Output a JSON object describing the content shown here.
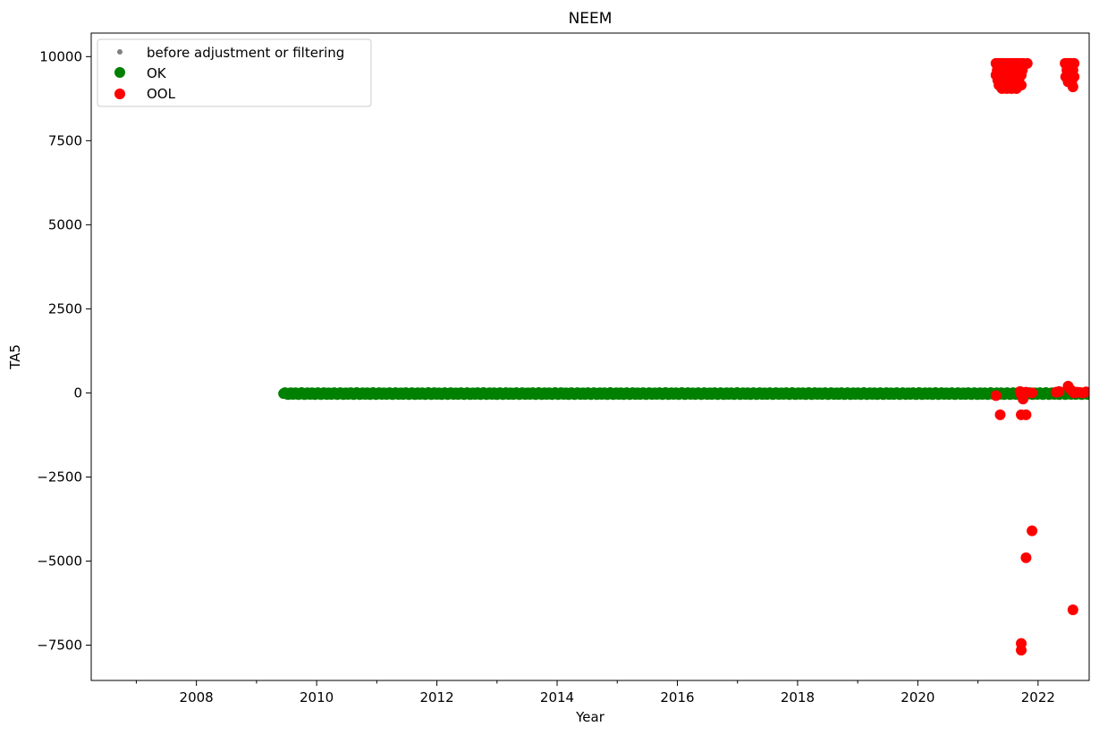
{
  "chart_data": {
    "type": "scatter",
    "title": "NEEM",
    "xlabel": "Year",
    "ylabel": "TA5",
    "xlim": [
      2006.25,
      2022.85
    ],
    "ylim": [
      -8550,
      10700
    ],
    "x_ticks": [
      2008,
      2010,
      2012,
      2014,
      2016,
      2018,
      2020,
      2022
    ],
    "x_tick_labels": [
      "2008",
      "2010",
      "2012",
      "2014",
      "2016",
      "2018",
      "2020",
      "2022"
    ],
    "x_minor_ticks": [
      2007,
      2009,
      2011,
      2013,
      2015,
      2017,
      2019,
      2021
    ],
    "y_ticks": [
      -7500,
      -5000,
      -2500,
      0,
      2500,
      5000,
      7500,
      10000
    ],
    "y_tick_labels": [
      "−7500",
      "−5000",
      "−2500",
      "0",
      "2500",
      "5000",
      "7500",
      "10000"
    ],
    "grid": false,
    "legend_position": "top-left",
    "series": [
      {
        "name": "before adjustment or filtering",
        "color": "#808080",
        "marker": "small-dot",
        "x": [],
        "y": []
      },
      {
        "name": "OK",
        "color": "#008000",
        "marker": "circle",
        "x_range": [
          2009.45,
          2022.85
        ],
        "y_value": -20,
        "y_jitter": 30,
        "x": [],
        "y": []
      },
      {
        "name": "OOL",
        "color": "#ff0000",
        "marker": "circle",
        "x": [
          2021.3,
          2021.35,
          2021.4,
          2021.45,
          2021.5,
          2021.55,
          2021.6,
          2021.65,
          2021.7,
          2021.75,
          2021.82,
          2021.32,
          2021.38,
          2021.44,
          2021.5,
          2021.56,
          2021.62,
          2021.68,
          2021.74,
          2021.3,
          2021.36,
          2021.42,
          2021.48,
          2021.54,
          2021.6,
          2021.66,
          2021.72,
          2021.33,
          2021.4,
          2021.47,
          2021.54,
          2021.61,
          2021.68,
          2021.35,
          2021.42,
          2021.5,
          2021.58,
          2021.65,
          2021.72,
          2021.4,
          2021.48,
          2021.56,
          2021.64,
          2022.45,
          2022.5,
          2022.55,
          2022.6,
          2022.48,
          2022.52,
          2022.58,
          2022.46,
          2022.54,
          2022.6,
          2022.5,
          2022.56,
          2022.58,
          2021.3,
          2021.37,
          2021.7,
          2021.72,
          2021.75,
          2021.8,
          2021.9,
          2022.3,
          2022.35,
          2022.5,
          2022.55,
          2022.6,
          2022.65,
          2022.7,
          2022.75,
          2022.8,
          2021.72,
          2021.8,
          2021.9,
          2021.8,
          2021.72,
          2021.72,
          2022.58
        ],
        "y": [
          9800,
          9800,
          9800,
          9800,
          9800,
          9800,
          9800,
          9800,
          9800,
          9800,
          9800,
          9600,
          9600,
          9600,
          9600,
          9600,
          9600,
          9600,
          9600,
          9450,
          9450,
          9450,
          9450,
          9450,
          9450,
          9450,
          9450,
          9300,
          9300,
          9300,
          9300,
          9300,
          9300,
          9150,
          9150,
          9150,
          9150,
          9150,
          9150,
          9050,
          9050,
          9050,
          9050,
          9800,
          9800,
          9800,
          9800,
          9600,
          9600,
          9600,
          9400,
          9400,
          9400,
          9250,
          9250,
          9100,
          -80,
          -650,
          40,
          -50,
          -180,
          20,
          0,
          20,
          40,
          200,
          80,
          0,
          20,
          10,
          0,
          30,
          -650,
          -650,
          -4100,
          -4900,
          -7450,
          -7650,
          -6450
        ]
      }
    ]
  }
}
